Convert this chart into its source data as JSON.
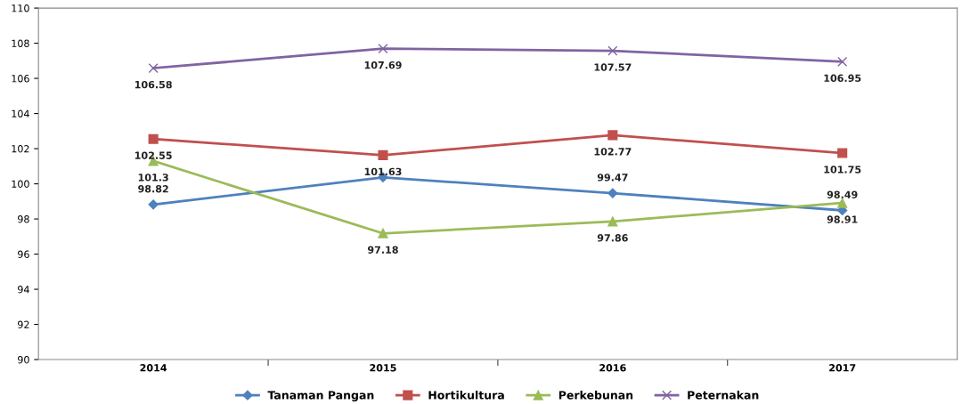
{
  "chart_data": {
    "type": "line",
    "categories": [
      "2014",
      "2015",
      "2016",
      "2017"
    ],
    "series": [
      {
        "name": "Tanaman Pangan",
        "color": "#4f81bd",
        "marker": "diamond",
        "values": [
          98.82,
          100.37,
          99.47,
          98.49
        ],
        "value_labels": [
          "98.82",
          null,
          "99.47",
          "98.49"
        ]
      },
      {
        "name": "Hortikultura",
        "color": "#c0504d",
        "marker": "square",
        "values": [
          102.55,
          101.63,
          102.77,
          101.75
        ],
        "value_labels": [
          "102.55",
          "101.63",
          "102.77",
          "101.75"
        ]
      },
      {
        "name": "Perkebunan",
        "color": "#9bbb59",
        "marker": "triangle",
        "values": [
          101.3,
          97.18,
          97.86,
          98.91
        ],
        "value_labels": [
          "101.3",
          "97.18",
          "97.86",
          "98.91"
        ]
      },
      {
        "name": "Peternakan",
        "color": "#8064a2",
        "marker": "cross",
        "values": [
          106.58,
          107.69,
          107.57,
          106.95
        ],
        "value_labels": [
          "106.58",
          "107.69",
          "107.57",
          "106.95"
        ]
      }
    ],
    "ylim": [
      90,
      110
    ],
    "yticks": [
      90,
      92,
      94,
      96,
      98,
      100,
      102,
      104,
      106,
      108,
      110
    ],
    "grid": false,
    "legend": "bottom"
  }
}
